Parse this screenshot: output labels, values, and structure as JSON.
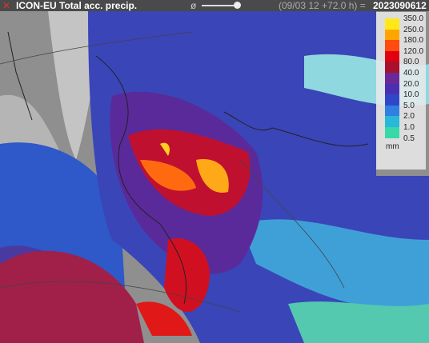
{
  "header": {
    "title": "ICON-EU Total acc. precip.",
    "symbol": "ø",
    "run": "(09/03 12 +72.0 h) =",
    "date": "2023090612"
  },
  "legend": {
    "labels": [
      "350.0",
      "250.0",
      "180.0",
      "120.0",
      "80.0",
      "40.0",
      "20.0",
      "10.0",
      "5.0",
      "2.0",
      "1.0",
      "0.5"
    ],
    "unit": "mm"
  }
}
